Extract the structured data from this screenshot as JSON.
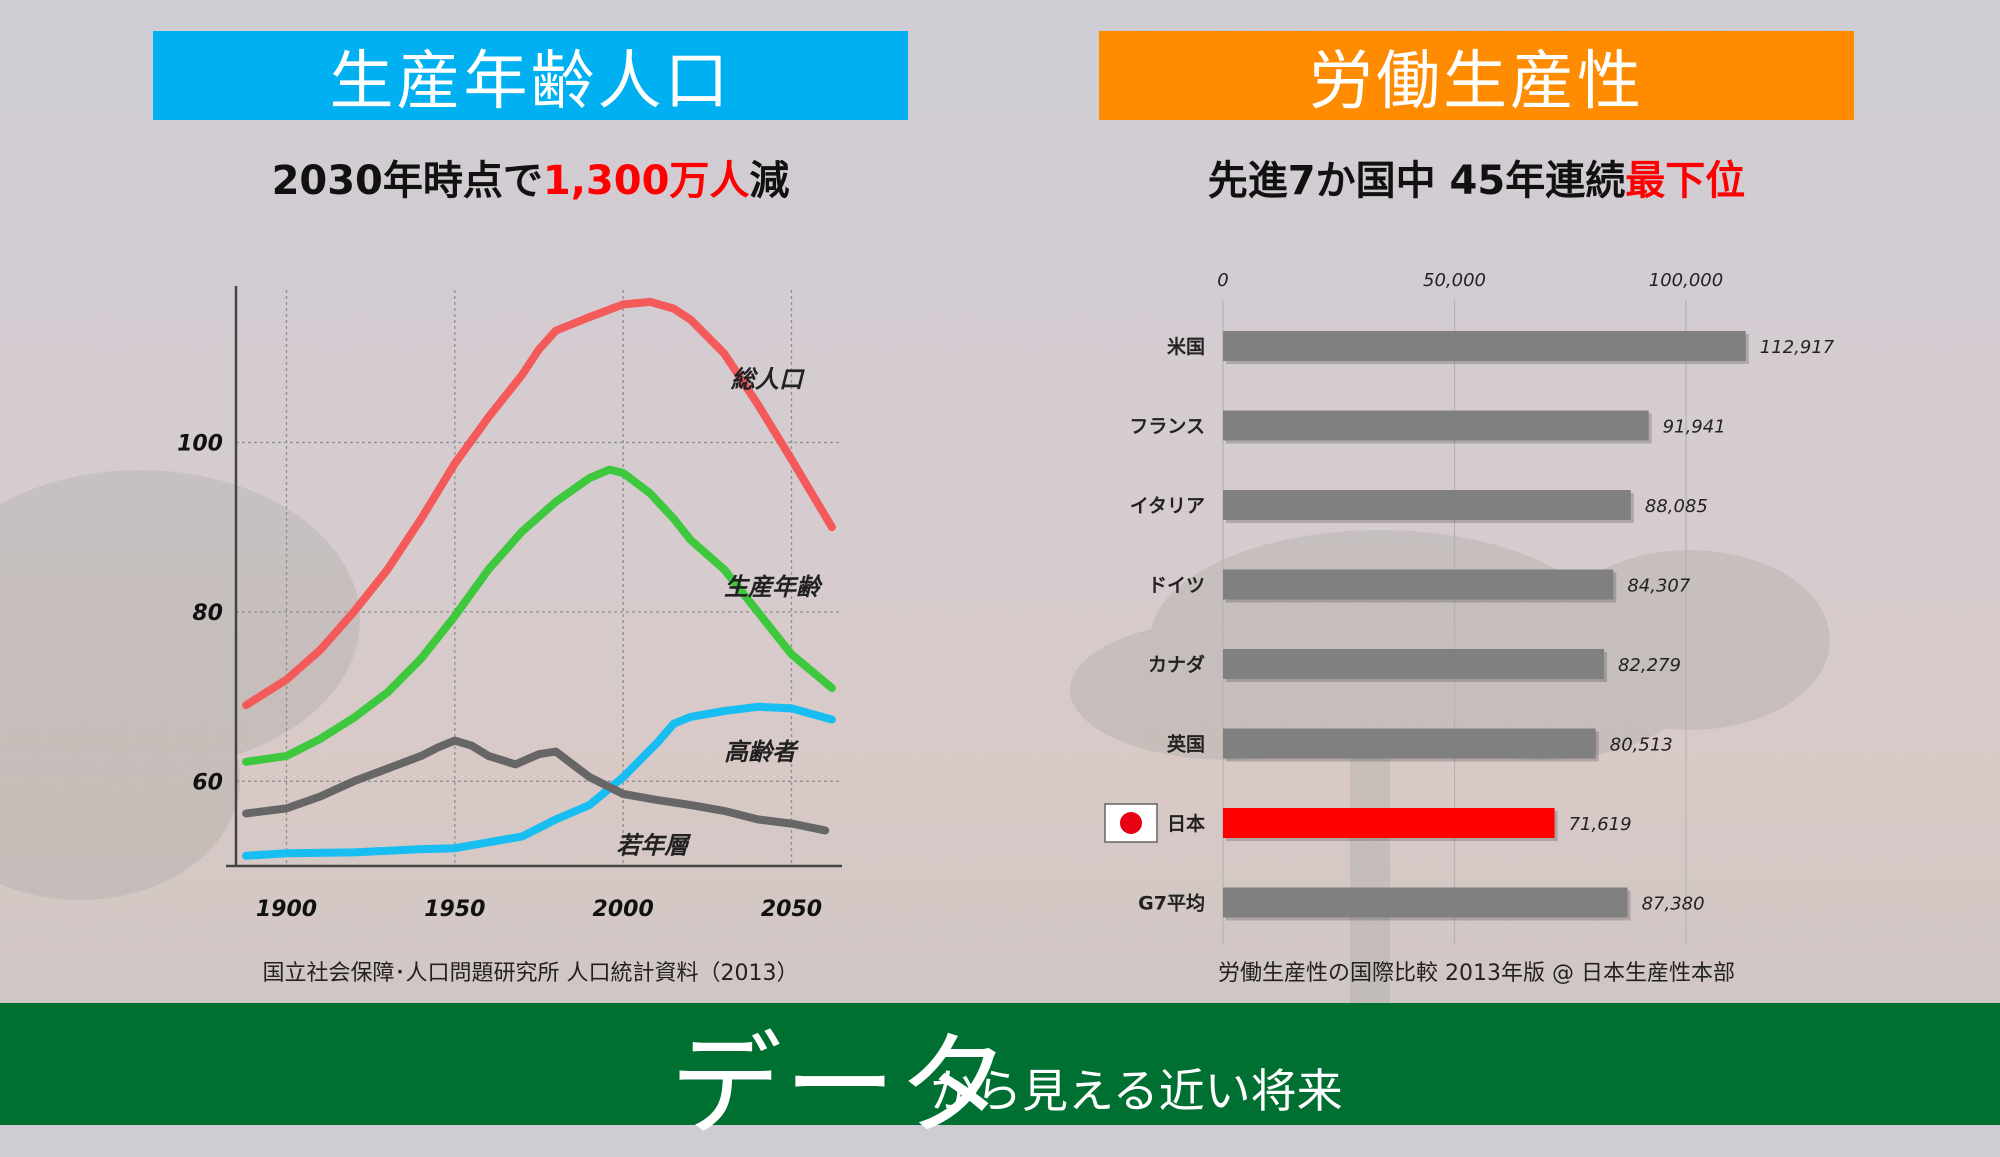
{
  "left_panel": {
    "banner": "生産年齢人口",
    "subtitle_pre": "2030年時点で",
    "subtitle_red": "1,300万人",
    "subtitle_post": "減",
    "source": "国立社会保障･人口問題研究所 人口統計資料（2013）"
  },
  "right_panel": {
    "banner": "労働生産性",
    "subtitle_pre": "先進7か国中 45年連続",
    "subtitle_red": "最下位",
    "source": "労働生産性の国際比較 2013年版 @ 日本生産性本部"
  },
  "footer": {
    "big": "データ",
    "small": "から見える近い将来"
  },
  "colors": {
    "accent_blue": "#00b0f0",
    "accent_orange": "#ff8c00",
    "footer_green": "#006f32",
    "total": "#f55a5a",
    "working_age": "#3ec83e",
    "elderly": "#18bdf2",
    "youth": "#666666",
    "bar_gray": "#808080",
    "bar_japan": "#ff0000"
  },
  "chart_data": [
    {
      "type": "line",
      "title": "",
      "xlabel": "",
      "ylabel": "",
      "xlim": [
        1885,
        2065
      ],
      "ylim": [
        50,
        118
      ],
      "x_ticks": [
        1900,
        1950,
        2000,
        2050
      ],
      "y_ticks": [
        60,
        80,
        100
      ],
      "grid": true,
      "series": [
        {
          "name": "総人口",
          "color": "#f55a5a",
          "points": [
            [
              1888,
              69
            ],
            [
              1900,
              72
            ],
            [
              1910,
              75.5
            ],
            [
              1920,
              80
            ],
            [
              1930,
              85
            ],
            [
              1940,
              91
            ],
            [
              1950,
              97.5
            ],
            [
              1960,
              103
            ],
            [
              1970,
              108
            ],
            [
              1975,
              111
            ],
            [
              1980,
              113.2
            ],
            [
              1990,
              114.8
            ],
            [
              2000,
              116.3
            ],
            [
              2008,
              116.6
            ],
            [
              2015,
              115.8
            ],
            [
              2020,
              114.5
            ],
            [
              2030,
              110.5
            ],
            [
              2040,
              104.5
            ],
            [
              2050,
              98
            ],
            [
              2062,
              90
            ]
          ]
        },
        {
          "name": "生産年齢",
          "color": "#3ec83e",
          "points": [
            [
              1888,
              62.3
            ],
            [
              1900,
              63
            ],
            [
              1910,
              65
            ],
            [
              1920,
              67.5
            ],
            [
              1930,
              70.5
            ],
            [
              1940,
              74.5
            ],
            [
              1950,
              79.5
            ],
            [
              1960,
              85
            ],
            [
              1970,
              89.5
            ],
            [
              1980,
              93
            ],
            [
              1990,
              95.8
            ],
            [
              1996,
              96.8
            ],
            [
              2000,
              96.4
            ],
            [
              2008,
              94
            ],
            [
              2015,
              91
            ],
            [
              2020,
              88.5
            ],
            [
              2030,
              85
            ],
            [
              2040,
              80
            ],
            [
              2050,
              75
            ],
            [
              2062,
              71
            ]
          ]
        },
        {
          "name": "高齢者",
          "color": "#18bdf2",
          "points": [
            [
              1888,
              51.2
            ],
            [
              1900,
              51.5
            ],
            [
              1920,
              51.6
            ],
            [
              1940,
              52
            ],
            [
              1950,
              52.1
            ],
            [
              1960,
              52.8
            ],
            [
              1970,
              53.5
            ],
            [
              1980,
              55.5
            ],
            [
              1990,
              57.2
            ],
            [
              2000,
              60.5
            ],
            [
              2010,
              64.5
            ],
            [
              2015,
              66.8
            ],
            [
              2020,
              67.6
            ],
            [
              2030,
              68.3
            ],
            [
              2040,
              68.8
            ],
            [
              2050,
              68.6
            ],
            [
              2062,
              67.3
            ]
          ]
        },
        {
          "name": "若年層",
          "color": "#666666",
          "points": [
            [
              1888,
              56.2
            ],
            [
              1900,
              56.8
            ],
            [
              1910,
              58.2
            ],
            [
              1920,
              60
            ],
            [
              1930,
              61.5
            ],
            [
              1940,
              63
            ],
            [
              1945,
              64
            ],
            [
              1950,
              64.8
            ],
            [
              1955,
              64.2
            ],
            [
              1960,
              63
            ],
            [
              1968,
              62
            ],
            [
              1975,
              63.2
            ],
            [
              1980,
              63.5
            ],
            [
              1985,
              62
            ],
            [
              1990,
              60.5
            ],
            [
              2000,
              58.5
            ],
            [
              2010,
              57.8
            ],
            [
              2020,
              57.2
            ],
            [
              2030,
              56.5
            ],
            [
              2040,
              55.5
            ],
            [
              2050,
              55
            ],
            [
              2060,
              54.2
            ]
          ]
        }
      ]
    },
    {
      "type": "bar",
      "orientation": "horizontal",
      "title": "",
      "xlim": [
        0,
        125000
      ],
      "x_ticks": [
        "0",
        "50,000",
        "100,000"
      ],
      "x_tick_values": [
        0,
        50000,
        100000
      ],
      "categories": [
        "米国",
        "フランス",
        "イタリア",
        "ドイツ",
        "カナダ",
        "英国",
        "日本",
        "G7平均"
      ],
      "values": [
        112917,
        91941,
        88085,
        84307,
        82279,
        80513,
        71619,
        87380
      ],
      "value_labels": [
        "112,917",
        "91,941",
        "88,085",
        "84,307",
        "82,279",
        "80,513",
        "71,619",
        "87,380"
      ],
      "highlight": "日本"
    }
  ]
}
